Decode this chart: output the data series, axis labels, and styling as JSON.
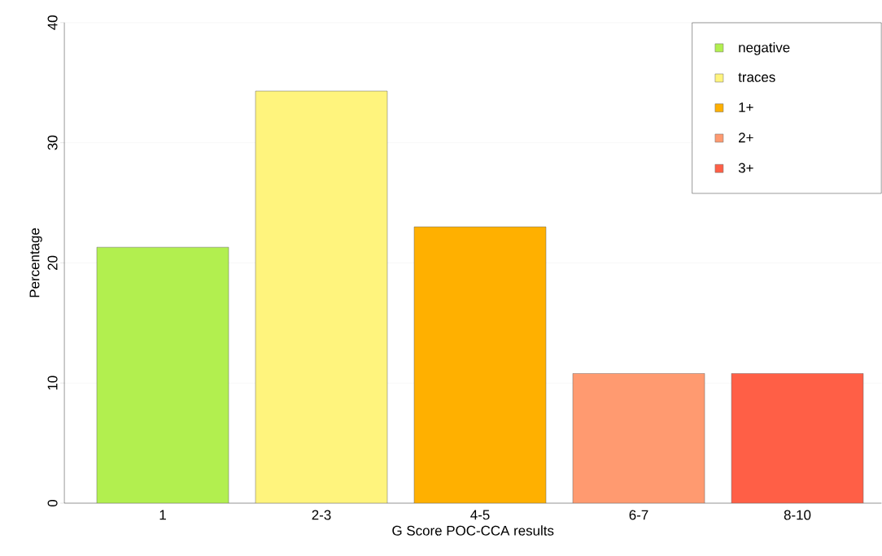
{
  "chart_data": {
    "type": "bar",
    "xlabel": "G Score POC-CCA results",
    "ylabel": "Percentage",
    "categories": [
      "1",
      "2-3",
      "4-5",
      "6-7",
      "8-10"
    ],
    "series": [
      {
        "name": "negative",
        "color": "#b2ef4f",
        "values": [
          21.3,
          null,
          null,
          null,
          null
        ]
      },
      {
        "name": "traces",
        "color": "#fff47d",
        "values": [
          null,
          34.3,
          null,
          null,
          null
        ]
      },
      {
        "name": "1+",
        "color": "#ffb000",
        "values": [
          null,
          null,
          23.0,
          null,
          null
        ]
      },
      {
        "name": "2+",
        "color": "#ff9a70",
        "values": [
          null,
          null,
          null,
          10.8,
          null
        ]
      },
      {
        "name": "3+",
        "color": "#ff5f46",
        "values": [
          null,
          null,
          null,
          null,
          10.8
        ]
      }
    ],
    "ylim": [
      0,
      40
    ],
    "yticks": [
      0,
      10,
      20,
      30,
      40
    ],
    "grid": "y",
    "legend": "top right"
  }
}
